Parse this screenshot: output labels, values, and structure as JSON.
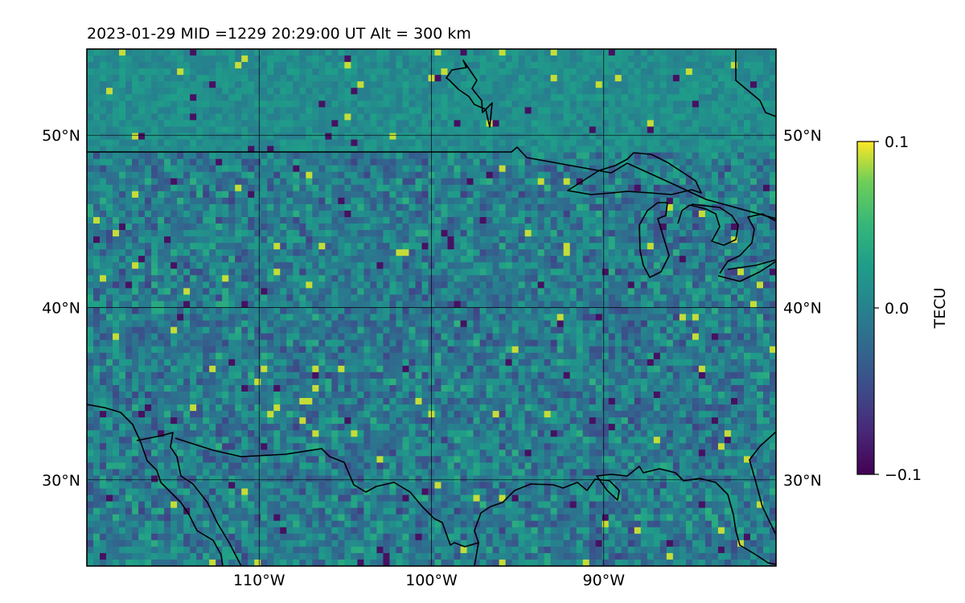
{
  "title": "2023-01-29  MID =1229    20:29:00  UT  Alt = 300 km",
  "map": {
    "lon_range": [
      -120,
      -80
    ],
    "lat_range": [
      25,
      55
    ],
    "lat_ticks": [
      {
        "value": 30,
        "label": "30°N"
      },
      {
        "value": 40,
        "label": "40°N"
      },
      {
        "value": 50,
        "label": "50°N"
      }
    ],
    "lon_ticks": [
      {
        "value": -110,
        "label": "110°W"
      },
      {
        "value": -100,
        "label": "100°W"
      },
      {
        "value": -90,
        "label": "90°W"
      }
    ],
    "gridlines": true,
    "field": "detrended total electron content perturbation, noisy pixel grid, mean near 0",
    "colormap": "viridis"
  },
  "colorbar": {
    "label": "TECU",
    "min": -0.1,
    "max": 0.1,
    "ticks": [
      {
        "value": 0.1,
        "label": "0.1"
      },
      {
        "value": 0.0,
        "label": "0.0"
      },
      {
        "value": -0.1,
        "label": "−0.1"
      }
    ]
  }
}
